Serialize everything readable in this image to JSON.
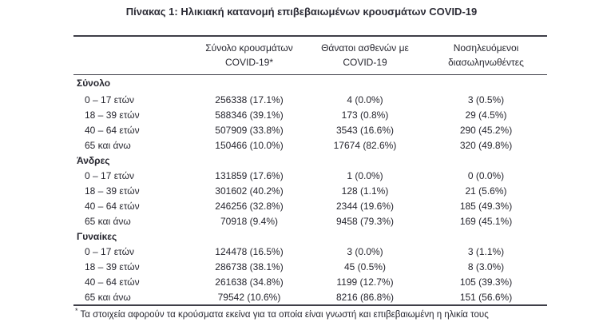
{
  "page": {
    "title": "Πίνακας 1: Ηλικιακή κατανομή επιβεβαιωμένων κρουσμάτων COVID-19"
  },
  "colors": {
    "text": "#26262f",
    "rule": "#3e3e48",
    "background": "#ffffff"
  },
  "table": {
    "headers": [
      {
        "line1": "",
        "line2": ""
      },
      {
        "line1": "Σύνολο κρουσμάτων",
        "line2": "COVID-19*"
      },
      {
        "line1": "Θάνατοι ασθενών με",
        "line2": "COVID-19"
      },
      {
        "line1": "Νοσηλευόμενοι",
        "line2": "διασωληνωθέντες"
      }
    ],
    "sections": [
      {
        "label": "Σύνολο",
        "rows": [
          {
            "age": "0 – 17 ετών",
            "cases": "256338 (17.1%)",
            "deaths": "4 (0.0%)",
            "intubated": "3 (0.5%)"
          },
          {
            "age": "18 – 39 ετών",
            "cases": "588346 (39.1%)",
            "deaths": "173 (0.8%)",
            "intubated": "29 (4.5%)"
          },
          {
            "age": "40 – 64 ετών",
            "cases": "507909 (33.8%)",
            "deaths": "3543 (16.6%)",
            "intubated": "290 (45.2%)"
          },
          {
            "age": "65 και άνω",
            "cases": "150466 (10.0%)",
            "deaths": "17674 (82.6%)",
            "intubated": "320 (49.8%)"
          }
        ]
      },
      {
        "label": "Άνδρες",
        "rows": [
          {
            "age": "0 – 17 ετών",
            "cases": "131859 (17.6%)",
            "deaths": "1 (0.0%)",
            "intubated": "0 (0.0%)"
          },
          {
            "age": "18 – 39 ετών",
            "cases": "301602 (40.2%)",
            "deaths": "128 (1.1%)",
            "intubated": "21 (5.6%)"
          },
          {
            "age": "40 – 64 ετών",
            "cases": "246256 (32.8%)",
            "deaths": "2344 (19.6%)",
            "intubated": "185 (49.3%)"
          },
          {
            "age": "65 και άνω",
            "cases": "70918 (9.4%)",
            "deaths": "9458 (79.3%)",
            "intubated": "169 (45.1%)"
          }
        ]
      },
      {
        "label": "Γυναίκες",
        "rows": [
          {
            "age": "0 – 17 ετών",
            "cases": "124478 (16.5%)",
            "deaths": "3 (0.0%)",
            "intubated": "3 (1.1%)"
          },
          {
            "age": "18 – 39 ετών",
            "cases": "286738 (38.1%)",
            "deaths": "45 (0.5%)",
            "intubated": "8 (3.0%)"
          },
          {
            "age": "40 – 64 ετών",
            "cases": "261638 (34.8%)",
            "deaths": "1199 (12.7%)",
            "intubated": "105 (39.3%)"
          },
          {
            "age": "65 και άνω",
            "cases": "79542 (10.6%)",
            "deaths": "8216 (86.8%)",
            "intubated": "151 (56.6%)"
          }
        ]
      }
    ],
    "footnote": {
      "marker": "*",
      "text": "Τα στοιχεία αφορούν τα κρούσματα εκείνα για τα οποία είναι γνωστή και επιβεβαιωμένη η ηλικία τους"
    }
  }
}
